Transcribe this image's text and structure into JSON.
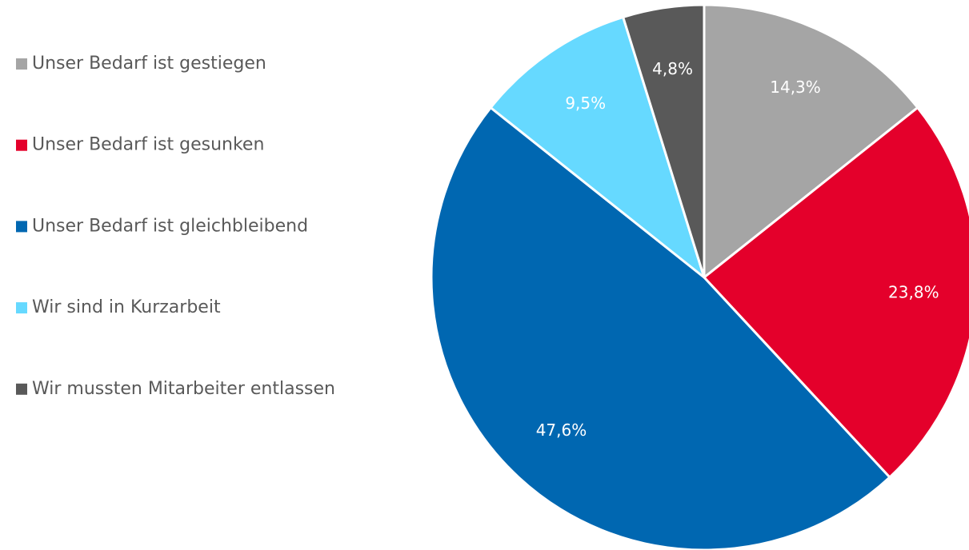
{
  "chart_data": {
    "type": "pie",
    "categories": [
      "Unser Bedarf ist gestiegen",
      "Unser Bedarf ist gesunken",
      "Unser Bedarf ist gleichbleibend",
      "Wir sind in Kurzarbeit",
      "Wir mussten Mitarbeiter entlassen"
    ],
    "values": [
      14.3,
      23.8,
      47.6,
      9.5,
      4.8
    ],
    "value_labels": [
      "14,3%",
      "23,8%",
      "47,6%",
      "9,5%",
      "4,8%"
    ],
    "colors": [
      "#a5a5a5",
      "#e4002b",
      "#0067b1",
      "#66d9ff",
      "#595959"
    ],
    "legend": "left"
  }
}
